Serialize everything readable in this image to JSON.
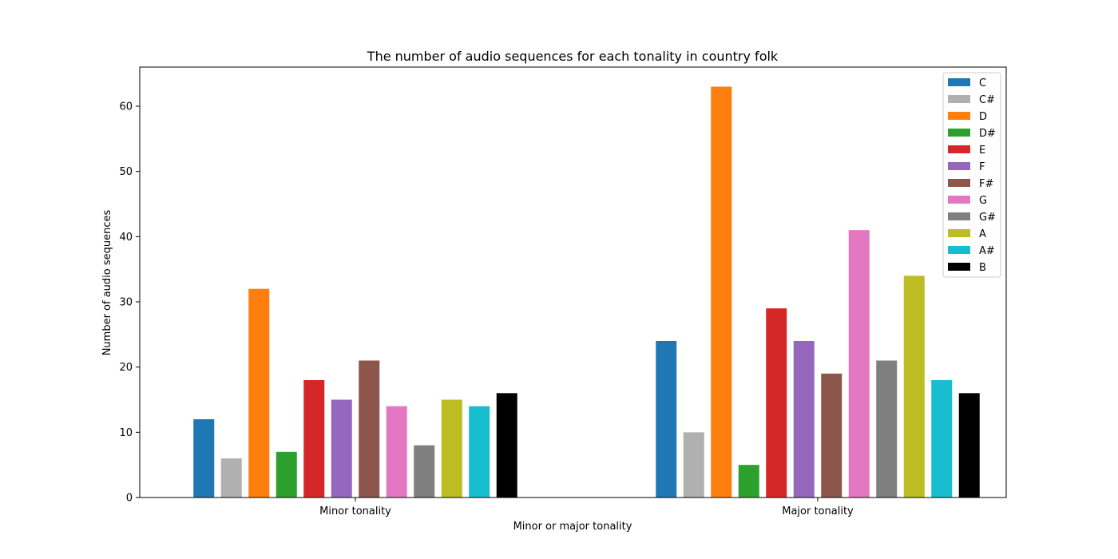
{
  "chart_data": {
    "type": "bar",
    "title": "The number of audio sequences for each tonality in country folk",
    "xlabel": "Minor or major tonality",
    "ylabel": "Number of audio sequences",
    "categories": [
      "Minor tonality",
      "Major tonality"
    ],
    "ylim": [
      0,
      66
    ],
    "yticks": [
      0,
      10,
      20,
      30,
      40,
      50,
      60
    ],
    "grid": false,
    "legend_position": "top-right",
    "series": [
      {
        "name": "C",
        "color": "#1f77b4",
        "values": [
          12,
          24
        ]
      },
      {
        "name": "C#",
        "color": "#b0b0b0",
        "values": [
          6,
          10
        ]
      },
      {
        "name": "D",
        "color": "#ff7f0e",
        "values": [
          32,
          63
        ]
      },
      {
        "name": "D#",
        "color": "#2ca02c",
        "values": [
          7,
          5
        ]
      },
      {
        "name": "E",
        "color": "#d62728",
        "values": [
          18,
          29
        ]
      },
      {
        "name": "F",
        "color": "#9467bd",
        "values": [
          15,
          24
        ]
      },
      {
        "name": "F#",
        "color": "#8c564b",
        "values": [
          21,
          19
        ]
      },
      {
        "name": "G",
        "color": "#e377c2",
        "values": [
          14,
          41
        ]
      },
      {
        "name": "G#",
        "color": "#7f7f7f",
        "values": [
          8,
          21
        ]
      },
      {
        "name": "A",
        "color": "#bcbd22",
        "values": [
          15,
          34
        ]
      },
      {
        "name": "A#",
        "color": "#17becf",
        "values": [
          14,
          18
        ]
      },
      {
        "name": "B",
        "color": "#000000",
        "values": [
          16,
          16
        ]
      }
    ]
  }
}
